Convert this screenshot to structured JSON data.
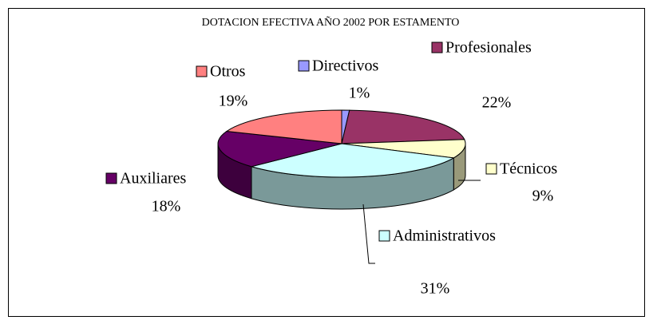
{
  "chart_data": {
    "type": "pie",
    "title": "DOTACION EFECTIVA AÑO 2002  POR ESTAMENTO",
    "categories": [
      "Directivos",
      "Profesionales",
      "Técnicos",
      "Administrativos",
      "Auxiliares",
      "Otros"
    ],
    "values": [
      1,
      22,
      9,
      31,
      18,
      19
    ],
    "value_labels": [
      "1%",
      "22%",
      "9%",
      "31%",
      "18%",
      "19%"
    ],
    "colors": [
      "#9999ff",
      "#993366",
      "#ffffcc",
      "#ccffff",
      "#660066",
      "#ff8080"
    ]
  }
}
